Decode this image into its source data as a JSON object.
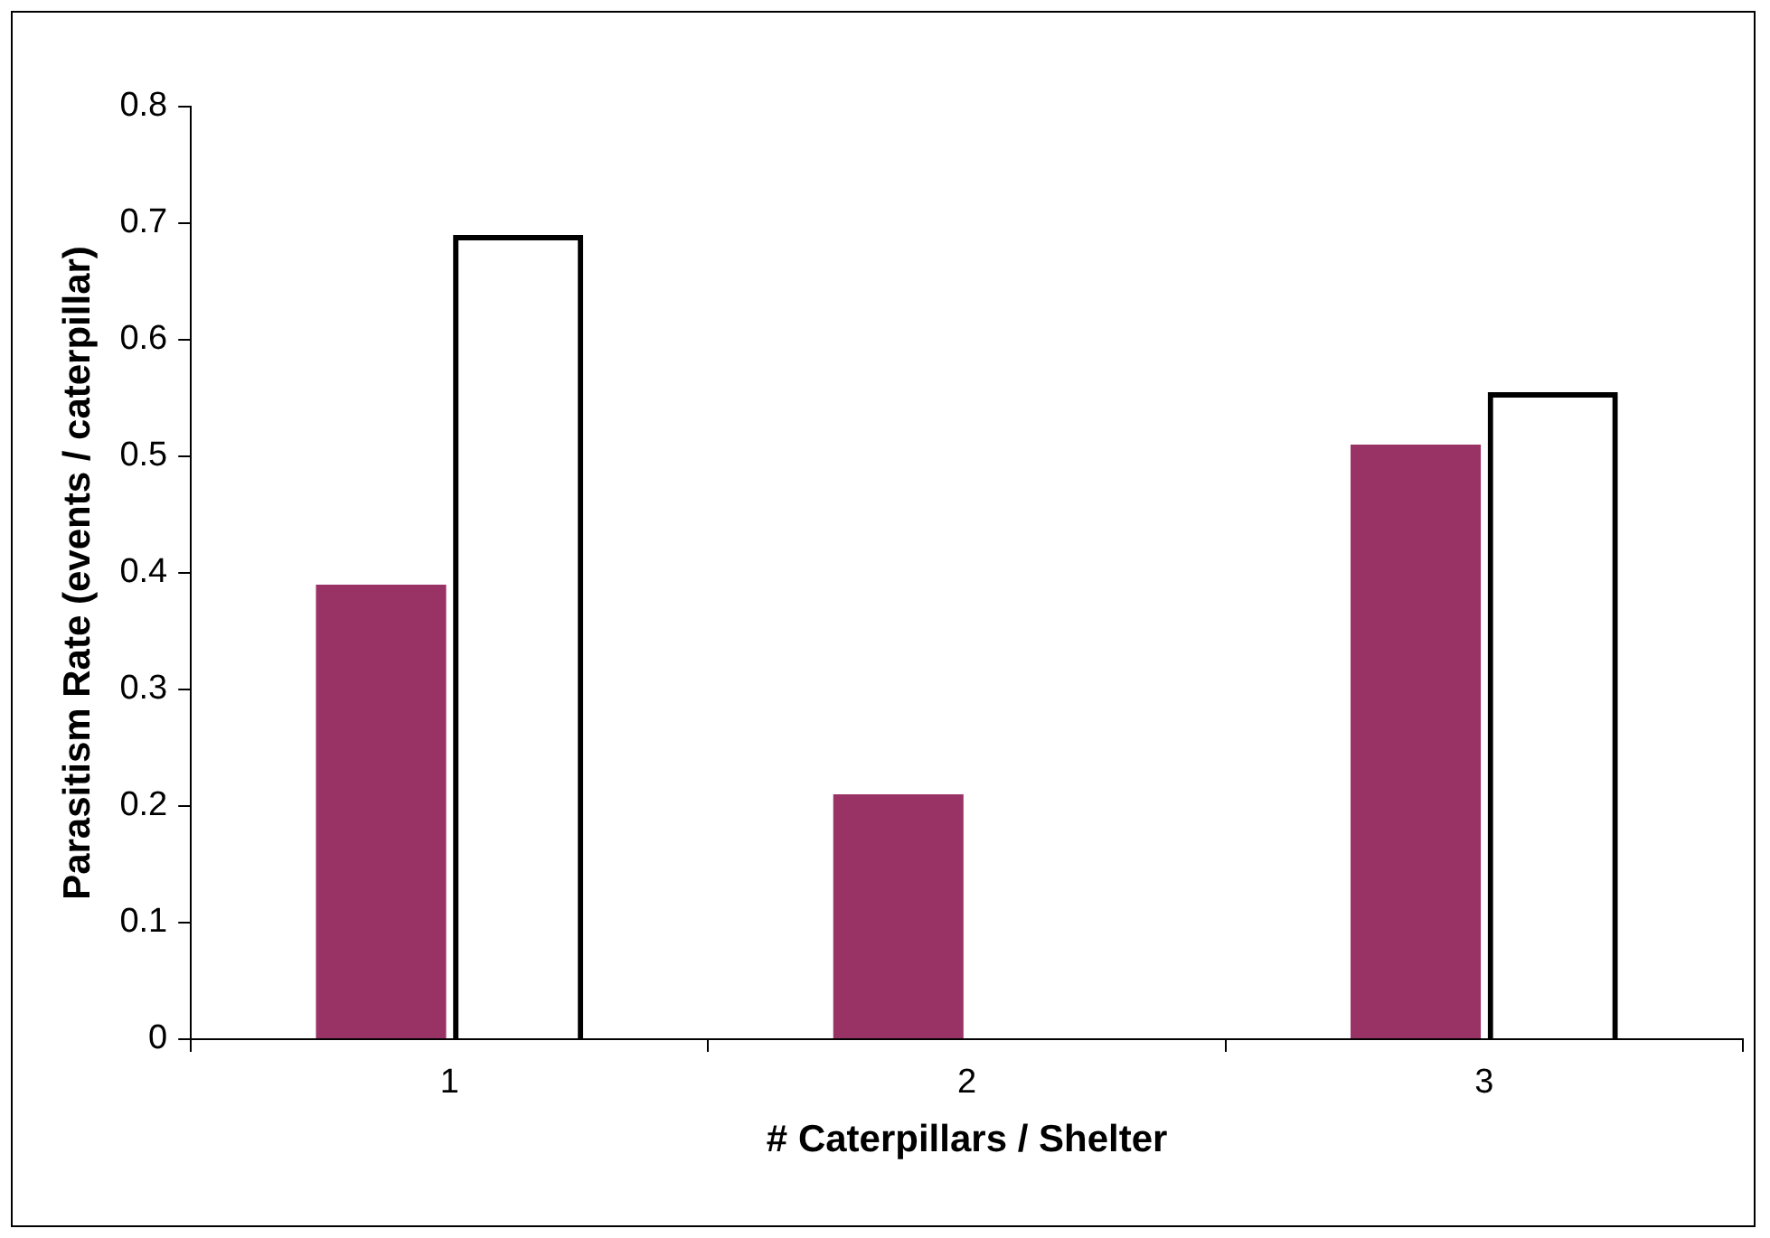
{
  "chart_data": {
    "type": "bar",
    "xlabel": "# Caterpillars / Shelter",
    "ylabel": "Parasitism Rate (events / caterpillar)",
    "categories": [
      "1",
      "2",
      "3"
    ],
    "series": [
      {
        "color": "#993366",
        "values": [
          0.39,
          0.21,
          0.51
        ]
      },
      {
        "color": "#000000",
        "values": [
          0.69,
          0,
          0.555
        ]
      }
    ],
    "ylim": [
      0,
      0.8
    ],
    "yticks": [
      0,
      0.1,
      0.2,
      0.3,
      0.4,
      0.5,
      0.6,
      0.7,
      0.8
    ],
    "grid": false,
    "legend": false
  }
}
